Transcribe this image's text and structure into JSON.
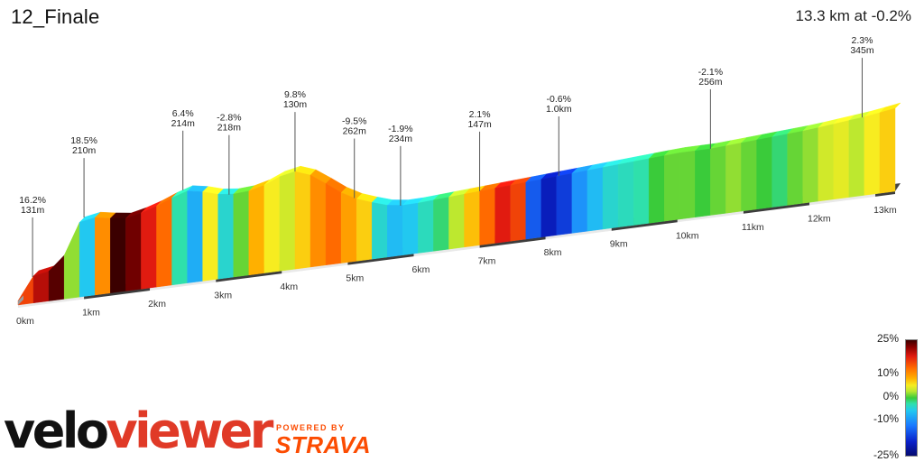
{
  "header": {
    "title": "12_Finale",
    "summary": "13.3 km at -0.2%"
  },
  "chart_data": {
    "type": "area",
    "x_unit": "km",
    "elevation_unit": "m",
    "total_distance_km": 13.3,
    "avg_gradient": "-0.2%",
    "distance_ticks": [
      "0km",
      "1km",
      "2km",
      "3km",
      "4km",
      "5km",
      "6km",
      "7km",
      "8km",
      "9km",
      "10km",
      "11km",
      "12km",
      "13km"
    ],
    "annotations": [
      {
        "km": 0.22,
        "grade": "16.2%",
        "elev": "131m"
      },
      {
        "km": 1.0,
        "grade": "18.5%",
        "elev": "210m"
      },
      {
        "km": 2.5,
        "grade": "6.4%",
        "elev": "214m"
      },
      {
        "km": 3.2,
        "grade": "-2.8%",
        "elev": "218m"
      },
      {
        "km": 4.2,
        "grade": "9.8%",
        "elev": "130m"
      },
      {
        "km": 5.1,
        "grade": "-9.5%",
        "elev": "262m"
      },
      {
        "km": 5.8,
        "grade": "-1.9%",
        "elev": "234m"
      },
      {
        "km": 7.0,
        "grade": "2.1%",
        "elev": "147m"
      },
      {
        "km": 8.2,
        "grade": "-0.6%",
        "elev": "1.0km"
      },
      {
        "km": 10.5,
        "grade": "-2.1%",
        "elev": "256m"
      },
      {
        "km": 12.8,
        "grade": "2.3%",
        "elev": "345m"
      }
    ],
    "profile": [
      [
        0.0,
        0.02
      ],
      [
        0.1,
        0.06
      ],
      [
        0.2,
        0.12
      ],
      [
        0.3,
        0.15
      ],
      [
        0.4,
        0.15
      ],
      [
        0.5,
        0.14
      ],
      [
        0.6,
        0.15
      ],
      [
        0.7,
        0.21
      ],
      [
        0.8,
        0.28
      ],
      [
        0.9,
        0.35
      ],
      [
        1.0,
        0.38
      ],
      [
        1.1,
        0.38
      ],
      [
        1.2,
        0.37
      ],
      [
        1.3,
        0.37
      ],
      [
        1.4,
        0.36
      ],
      [
        1.5,
        0.36
      ],
      [
        1.6,
        0.35
      ],
      [
        1.7,
        0.35
      ],
      [
        1.8,
        0.36
      ],
      [
        2.0,
        0.38
      ],
      [
        2.2,
        0.4
      ],
      [
        2.4,
        0.43
      ],
      [
        2.5,
        0.45
      ],
      [
        2.6,
        0.44
      ],
      [
        2.8,
        0.43
      ],
      [
        3.0,
        0.41
      ],
      [
        3.2,
        0.4
      ],
      [
        3.4,
        0.4
      ],
      [
        3.6,
        0.41
      ],
      [
        3.8,
        0.43
      ],
      [
        4.0,
        0.46
      ],
      [
        4.1,
        0.47
      ],
      [
        4.2,
        0.47
      ],
      [
        4.4,
        0.45
      ],
      [
        4.6,
        0.41
      ],
      [
        4.8,
        0.36
      ],
      [
        5.0,
        0.32
      ],
      [
        5.2,
        0.29
      ],
      [
        5.4,
        0.27
      ],
      [
        5.6,
        0.25
      ],
      [
        5.8,
        0.24
      ],
      [
        6.0,
        0.24
      ],
      [
        6.5,
        0.25
      ],
      [
        7.0,
        0.26
      ],
      [
        7.5,
        0.27
      ],
      [
        8.0,
        0.28
      ],
      [
        8.5,
        0.29
      ],
      [
        9.0,
        0.3
      ],
      [
        9.5,
        0.31
      ],
      [
        10.0,
        0.32
      ],
      [
        10.5,
        0.32
      ],
      [
        11.0,
        0.33
      ],
      [
        11.5,
        0.34
      ],
      [
        12.0,
        0.35
      ],
      [
        12.3,
        0.36
      ],
      [
        12.6,
        0.37
      ],
      [
        12.9,
        0.38
      ],
      [
        13.3,
        0.4
      ]
    ],
    "grades": [
      16,
      20,
      24,
      2,
      -6,
      12,
      25,
      23,
      18,
      14,
      -2,
      -8,
      6,
      -4,
      1,
      10,
      6,
      4,
      8,
      12,
      14,
      11,
      8,
      -4,
      -7,
      -6,
      -3,
      -1,
      3,
      9,
      14,
      18,
      16,
      -14,
      -19,
      -16,
      -10,
      -7,
      -4,
      -3,
      -2,
      0,
      1,
      1,
      0,
      1,
      2,
      1,
      0,
      -1,
      1,
      2,
      4,
      5,
      3,
      6,
      8
    ],
    "legend": {
      "labels": [
        "25%",
        "10%",
        "0%",
        "-10%",
        "-25%"
      ]
    }
  },
  "branding": {
    "velo": "velo",
    "viewer": "viewer",
    "powered_by": "POWERED BY",
    "strava": "STRAVA"
  }
}
